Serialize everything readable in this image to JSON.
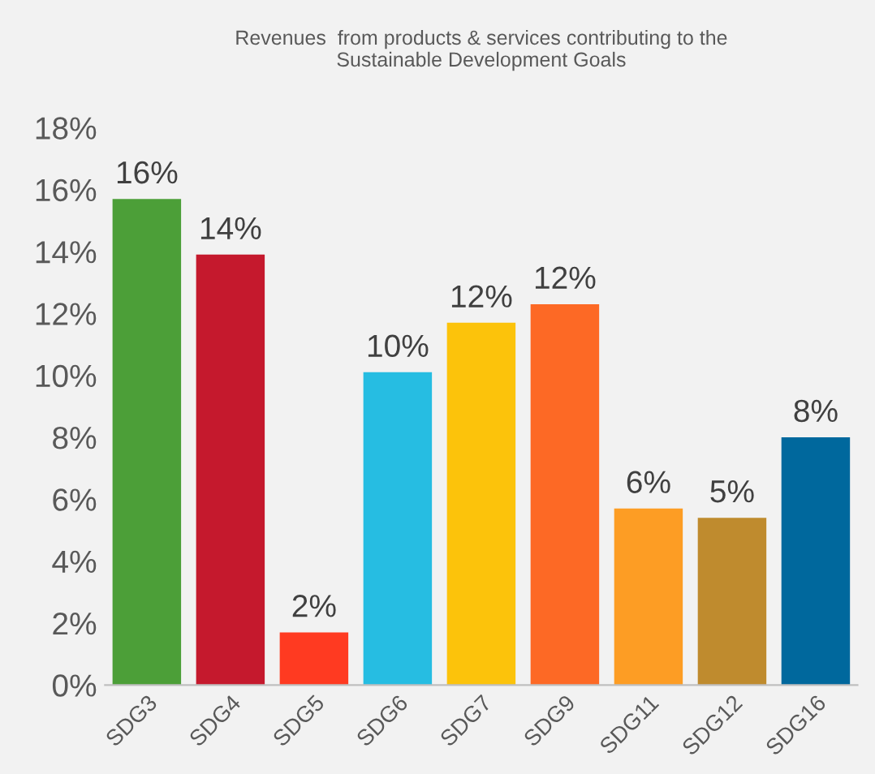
{
  "chart_data": {
    "type": "bar",
    "title": "Revenues  from products & services contributing to the\nSustainable Development Goals",
    "categories": [
      "SDG3",
      "SDG4",
      "SDG5",
      "SDG6",
      "SDG7",
      "SDG9",
      "SDG11",
      "SDG12",
      "SDG16"
    ],
    "values": [
      15.7,
      13.9,
      1.7,
      10.1,
      11.7,
      12.3,
      5.7,
      5.4,
      8.0
    ],
    "colors": [
      "#4c9f38",
      "#c5192d",
      "#ff3a21",
      "#26bde2",
      "#fcc30b",
      "#fd6925",
      "#fd9d24",
      "#bf8b2e",
      "#00689d"
    ],
    "value_labels": [
      "16%",
      "14%",
      "2%",
      "10%",
      "12%",
      "12%",
      "6%",
      "5%",
      "8%"
    ],
    "ylim": [
      0,
      18
    ],
    "yticks": [
      {
        "value": 0,
        "label": "0%"
      },
      {
        "value": 2,
        "label": "2%"
      },
      {
        "value": 4,
        "label": "4%"
      },
      {
        "value": 6,
        "label": "6%"
      },
      {
        "value": 8,
        "label": "8%"
      },
      {
        "value": 10,
        "label": "10%"
      },
      {
        "value": 12,
        "label": "12%"
      },
      {
        "value": 14,
        "label": "14%"
      },
      {
        "value": 16,
        "label": "16%"
      },
      {
        "value": 18,
        "label": "18%"
      }
    ],
    "grid": false,
    "legend": false
  }
}
